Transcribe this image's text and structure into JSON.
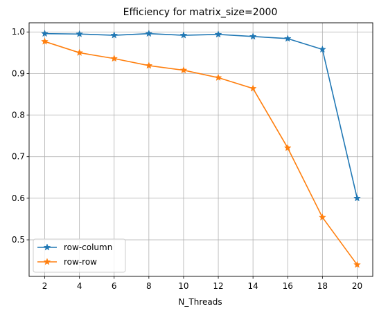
{
  "chart_data": {
    "type": "line",
    "title": "Efficiency for matrix_size=2000",
    "xlabel": "N_Threads",
    "ylabel": "",
    "x": [
      2,
      4,
      6,
      8,
      10,
      12,
      14,
      16,
      18,
      20
    ],
    "xticks": [
      "2",
      "4",
      "6",
      "8",
      "10",
      "12",
      "14",
      "16",
      "18",
      "20"
    ],
    "yticks": [
      "0.5",
      "0.6",
      "0.7",
      "0.8",
      "0.9",
      "1.0"
    ],
    "ytick_values": [
      0.5,
      0.6,
      0.7,
      0.8,
      0.9,
      1.0
    ],
    "xlim": [
      1.1,
      20.9
    ],
    "ylim": [
      0.412,
      1.022
    ],
    "grid": true,
    "legend_position": "lower-left",
    "marker": "star",
    "series": [
      {
        "name": "row-column",
        "color": "#1f77b4",
        "values": [
          0.996,
          0.995,
          0.992,
          0.996,
          0.992,
          0.994,
          0.989,
          0.984,
          0.958,
          0.6
        ]
      },
      {
        "name": "row-row",
        "color": "#ff7f0e",
        "values": [
          0.977,
          0.95,
          0.936,
          0.919,
          0.908,
          0.89,
          0.864,
          0.721,
          0.554,
          0.44
        ]
      }
    ]
  }
}
